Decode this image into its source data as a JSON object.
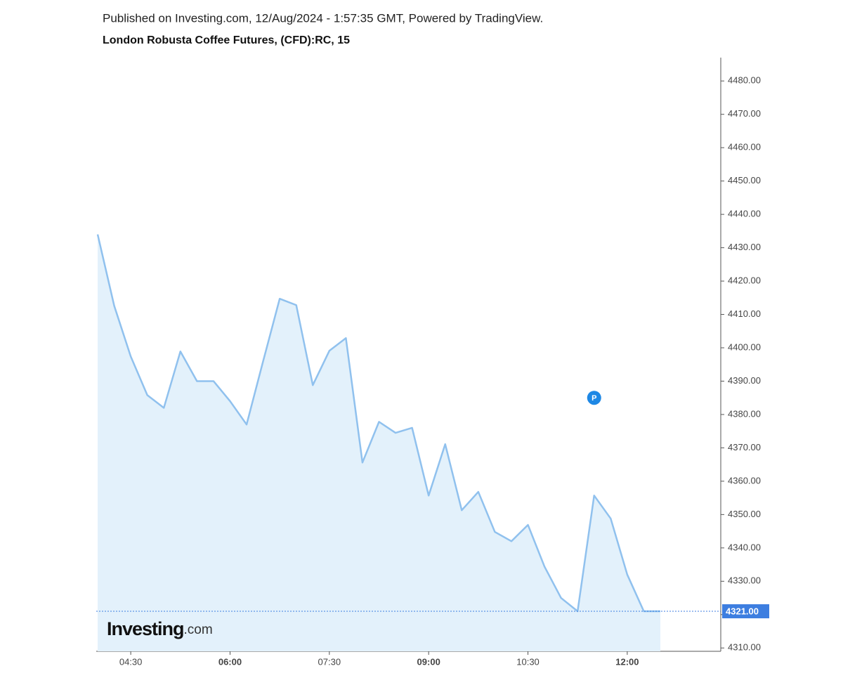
{
  "chart_data": {
    "type": "area",
    "header": "Published on Investing.com, 12/Aug/2024 - 1:57:35 GMT, Powered by TradingView.",
    "title": "London Robusta Coffee Futures, (CFD):RC, 15",
    "categories": [
      null,
      null,
      "04:30",
      null,
      null,
      null,
      null,
      null,
      "06:00",
      null,
      null,
      null,
      null,
      null,
      "07:30",
      null,
      null,
      null,
      null,
      null,
      "09:00",
      null,
      null,
      null,
      null,
      null,
      "10:30",
      null,
      null,
      null,
      null,
      null,
      "12:00",
      null,
      null
    ],
    "series": [
      {
        "name": "RC",
        "color": "#90c1ee",
        "fill": "#e3f1fb",
        "values": [
          4434,
          4412.6,
          4397.4,
          4385.8,
          4382,
          4398.9,
          4390,
          4390,
          4384,
          4377,
          4396,
          4414.7,
          4412.8,
          4388.8,
          4399.1,
          4402.9,
          4365.6,
          4377.8,
          4374.5,
          4376,
          4355.7,
          4371.1,
          4351.3,
          4356.8,
          4344.8,
          4342,
          4346.9,
          4334.4,
          4325,
          4321,
          4355.7,
          4348.8,
          4332,
          4321,
          4321
        ]
      }
    ],
    "ylim": [
      4309,
      4487
    ],
    "yticks": [
      {
        "value": 4310,
        "label": "4310.00"
      },
      {
        "value": 4320,
        "label": "4320.00"
      },
      {
        "value": 4330,
        "label": "4330.00"
      },
      {
        "value": 4340,
        "label": "4340.00"
      },
      {
        "value": 4350,
        "label": "4350.00"
      },
      {
        "value": 4360,
        "label": "4360.00"
      },
      {
        "value": 4370,
        "label": "4370.00"
      },
      {
        "value": 4380,
        "label": "4380.00"
      },
      {
        "value": 4390,
        "label": "4390.00"
      },
      {
        "value": 4400,
        "label": "4400.00"
      },
      {
        "value": 4410,
        "label": "4410.00"
      },
      {
        "value": 4420,
        "label": "4420.00"
      },
      {
        "value": 4430,
        "label": "4430.00"
      },
      {
        "value": 4440,
        "label": "4440.00"
      },
      {
        "value": 4450,
        "label": "4450.00"
      },
      {
        "value": 4460,
        "label": "4460.00"
      },
      {
        "value": 4470,
        "label": "4470.00"
      },
      {
        "value": 4480,
        "label": "4480.00"
      }
    ],
    "last_price": {
      "value": 4321,
      "label": "4321.00",
      "color": "#3d7ee0"
    },
    "marker": {
      "label": "P",
      "value": 4385,
      "index": 30,
      "color": "#1e88e5"
    },
    "logo": {
      "main": "Investing",
      "suffix": ".com"
    }
  }
}
